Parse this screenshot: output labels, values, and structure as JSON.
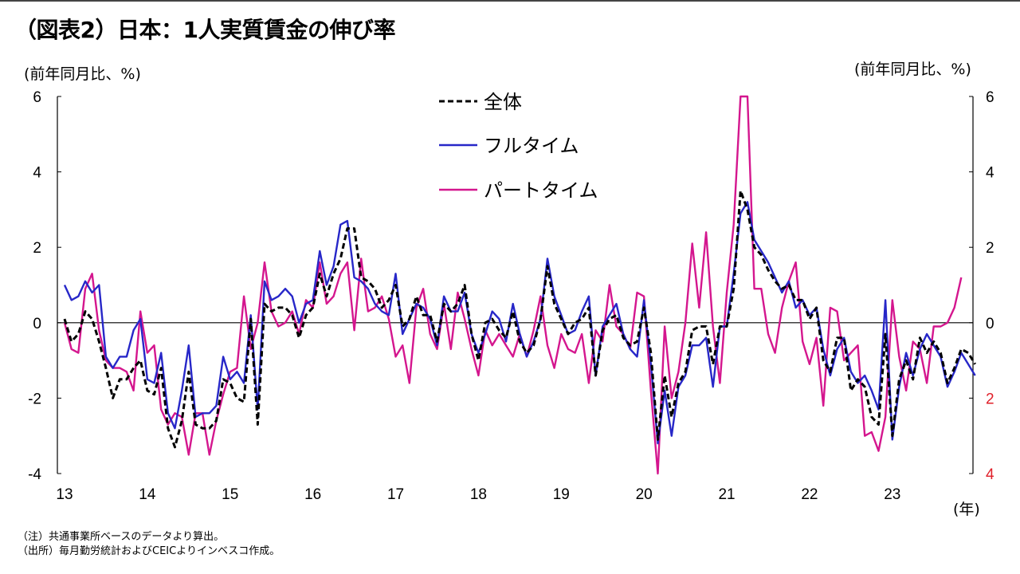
{
  "title": "（図表2）日本：1人実質賃金の伸び率",
  "unit_left": "(前年同月比、%)",
  "unit_right": "(前年同月比、%)",
  "year_unit": "(年)",
  "notes": [
    "（注）共通事業所ベースのデータより算出。",
    "（出所）毎月勤労統計およびCEICよりインベスコ作成。"
  ],
  "colors": {
    "total": "#000000",
    "fulltime": "#2727c8",
    "parttime": "#d4168e",
    "right_axis_labels": "#e0202a"
  },
  "chart_data": {
    "type": "line",
    "x_start": "2013-01",
    "frequency": "monthly",
    "xlim": [
      "2013-01",
      "2023-12"
    ],
    "ylim": [
      -4,
      6
    ],
    "y_ticks": [
      6,
      4,
      2,
      0,
      -2,
      -4
    ],
    "right_y_tick_labels": [
      "6",
      "4",
      "2",
      "0",
      "2",
      "4"
    ],
    "x_tick_labels": [
      "13",
      "14",
      "15",
      "16",
      "17",
      "18",
      "19",
      "20",
      "21",
      "22",
      "23"
    ],
    "legend_position": "top-center",
    "series": [
      {
        "name": "全体",
        "style": "dashed",
        "values": [
          0.1,
          -0.5,
          -0.3,
          0.3,
          0.1,
          -0.5,
          -1.2,
          -2.0,
          -1.5,
          -1.5,
          -1.2,
          -1.0,
          -1.8,
          -1.9,
          -1.2,
          -2.8,
          -3.3,
          -2.6,
          -1.3,
          -2.7,
          -2.8,
          -2.8,
          -2.6,
          -1.5,
          -1.6,
          -2.0,
          -2.1,
          0.1,
          -2.7,
          0.5,
          0.3,
          0.4,
          0.4,
          0.2,
          -0.4,
          0.2,
          0.4,
          1.3,
          0.7,
          1.3,
          1.7,
          2.5,
          2.5,
          1.2,
          1.1,
          0.9,
          0.4,
          0.6,
          1.0,
          -0.1,
          0.1,
          0.7,
          0.2,
          0.2,
          -0.5,
          0.5,
          0.3,
          0.5,
          1.0,
          -0.3,
          -1.0,
          0.0,
          0.1,
          -0.2,
          -0.4,
          0.3,
          -0.5,
          -0.8,
          -0.6,
          0.1,
          1.5,
          0.5,
          0.1,
          -0.3,
          0.0,
          0.1,
          0.4,
          -1.4,
          -0.2,
          0.1,
          0.2,
          -0.4,
          -0.6,
          -0.5,
          0.4,
          -0.8,
          -3.1,
          -1.4,
          -2.5,
          -1.6,
          -1.3,
          -0.2,
          -0.1,
          -0.1,
          -1.1,
          -0.1,
          -0.1,
          0.9,
          3.5,
          3.0,
          2.0,
          1.8,
          1.4,
          1.1,
          0.9,
          1.0,
          0.6,
          0.6,
          0.1,
          0.4,
          -1.0,
          -1.3,
          -0.4,
          -0.4,
          -1.8,
          -1.5,
          -1.7,
          -2.5,
          -2.7,
          -0.3,
          -3.0,
          -1.5,
          -1.0,
          -1.5,
          -0.4,
          -0.8,
          -0.5,
          -0.8,
          -1.6,
          -1.2,
          -0.7,
          -0.8,
          -1.1
        ]
      },
      {
        "name": "フルタイム",
        "style": "solid",
        "values": [
          1.0,
          0.6,
          0.7,
          1.1,
          0.8,
          1.0,
          -0.9,
          -1.2,
          -0.9,
          -0.9,
          -0.2,
          0.1,
          -1.5,
          -1.6,
          -0.8,
          -2.4,
          -2.8,
          -1.8,
          -0.6,
          -2.5,
          -2.4,
          -2.4,
          -2.2,
          -0.9,
          -1.5,
          -1.3,
          -1.6,
          0.2,
          -2.3,
          1.1,
          0.6,
          0.7,
          0.9,
          0.7,
          0.0,
          0.5,
          0.6,
          1.9,
          1.0,
          1.5,
          2.6,
          2.7,
          1.2,
          1.1,
          0.9,
          0.5,
          0.3,
          0.2,
          1.3,
          -0.3,
          0.1,
          0.5,
          0.4,
          0.1,
          -0.6,
          0.7,
          0.3,
          0.3,
          0.8,
          -0.3,
          -0.8,
          -0.3,
          0.3,
          0.1,
          -0.5,
          0.5,
          -0.3,
          -0.9,
          -0.5,
          0.1,
          1.7,
          0.7,
          0.2,
          -0.3,
          -0.2,
          0.3,
          0.7,
          -1.4,
          -0.1,
          0.2,
          0.5,
          -0.3,
          -0.7,
          -0.9,
          0.6,
          -1.1,
          -3.2,
          -1.8,
          -3.0,
          -1.7,
          -1.4,
          -0.6,
          -0.6,
          -0.4,
          -1.7,
          -0.1,
          -0.1,
          1.3,
          2.9,
          3.2,
          2.2,
          1.9,
          1.6,
          1.2,
          0.8,
          1.1,
          0.4,
          0.6,
          0.2,
          0.4,
          -0.7,
          -1.4,
          -0.7,
          -0.4,
          -1.3,
          -1.6,
          -1.4,
          -1.8,
          -2.3,
          0.6,
          -3.1,
          -1.7,
          -0.8,
          -1.4,
          -0.7,
          -0.3,
          -0.6,
          -0.9,
          -1.7,
          -1.3,
          -0.8,
          -1.1,
          -1.4
        ]
      },
      {
        "name": "パートタイム",
        "style": "solid",
        "values": [
          0.0,
          -0.7,
          -0.8,
          0.9,
          1.3,
          -0.2,
          -1.0,
          -1.2,
          -1.2,
          -1.3,
          -1.8,
          0.3,
          -0.8,
          -0.6,
          -2.3,
          -2.7,
          -2.4,
          -2.5,
          -3.5,
          -2.4,
          -2.4,
          -3.5,
          -2.6,
          -1.9,
          -1.3,
          -1.2,
          0.7,
          -0.7,
          0.0,
          1.6,
          0.3,
          -0.1,
          0.0,
          0.3,
          -0.3,
          0.6,
          0.4,
          1.6,
          0.5,
          0.7,
          1.3,
          1.6,
          -0.2,
          1.7,
          0.3,
          0.4,
          0.7,
          0.1,
          -0.9,
          -0.6,
          -1.6,
          0.4,
          0.9,
          -0.3,
          -0.7,
          0.5,
          -0.7,
          0.8,
          0.1,
          -0.7,
          -1.4,
          -0.2,
          -0.6,
          -0.3,
          -0.6,
          -0.9,
          -0.3,
          -0.9,
          -0.2,
          0.7,
          -0.6,
          -1.2,
          -0.3,
          -0.7,
          -0.8,
          -0.3,
          -1.6,
          -0.2,
          -0.5,
          1.0,
          -0.1,
          -0.3,
          -0.7,
          0.8,
          0.7,
          -1.8,
          -4.0,
          -0.1,
          -2.0,
          -1.3,
          0.0,
          2.1,
          0.4,
          2.4,
          -0.1,
          -1.6,
          0.8,
          2.6,
          6.0,
          6.0,
          0.9,
          0.9,
          -0.3,
          -0.8,
          0.4,
          1.1,
          1.6,
          -0.5,
          -1.1,
          -0.4,
          -2.2,
          0.4,
          0.3,
          -1.0,
          -0.8,
          -0.6,
          -3.0,
          -2.9,
          -3.4,
          -2.5,
          0.6,
          -0.9,
          -1.8,
          -0.5,
          -0.7,
          -1.6,
          -0.1,
          -0.1,
          0.0,
          0.4,
          1.2
        ]
      }
    ]
  }
}
